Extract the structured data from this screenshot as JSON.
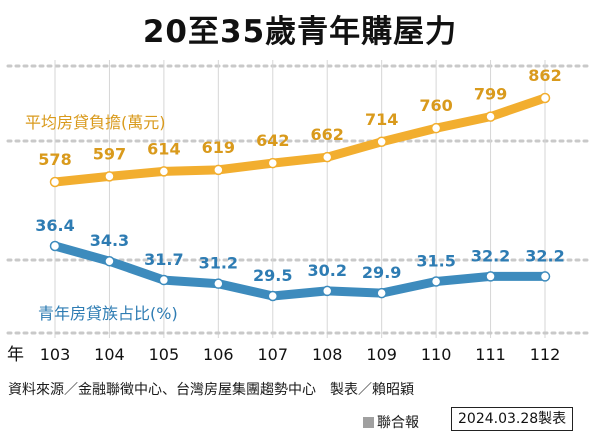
{
  "title": "20至35歲青年購屋力",
  "year_unit": "年",
  "source_text": "資料來源／金融聯徵中心、台灣房屋集團趨勢中心　製表／賴昭穎",
  "publisher": "聯合報",
  "date_stamp": "2024.03.28製表",
  "colors": {
    "orange": "#f2ae2f",
    "blue": "#3d8bbd",
    "orange_text": "#d99a1c",
    "blue_text": "#2e7cb3"
  },
  "chart_data": {
    "type": "line",
    "categories": [
      "103",
      "104",
      "105",
      "106",
      "107",
      "108",
      "109",
      "110",
      "111",
      "112"
    ],
    "series": [
      {
        "name": "平均房貸負擔(萬元)",
        "values": [
          578,
          597,
          614,
          619,
          642,
          662,
          714,
          760,
          799,
          862
        ]
      },
      {
        "name": "青年房貸族占比(%)",
        "values": [
          36.4,
          34.3,
          31.7,
          31.2,
          29.5,
          30.2,
          29.9,
          31.5,
          32.2,
          32.2
        ]
      }
    ],
    "value_labels": [
      [
        "578",
        "597",
        "614",
        "619",
        "642",
        "662",
        "714",
        "760",
        "799",
        "862"
      ],
      [
        "36.4",
        "34.3",
        "31.7",
        "31.2",
        "29.5",
        "30.2",
        "29.9",
        "31.5",
        "32.2",
        "32.2"
      ]
    ],
    "grid": true,
    "legend": "series labels placed beside each line"
  }
}
